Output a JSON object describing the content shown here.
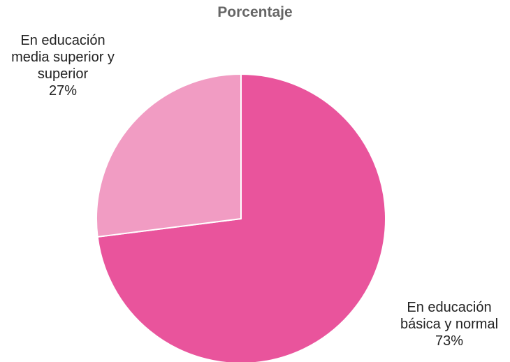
{
  "chart_data": {
    "type": "pie",
    "title": "Porcentaje",
    "categories": [
      "En educación básica y normal",
      "En educación media superior y superior"
    ],
    "values": [
      73,
      27
    ],
    "value_labels": [
      "73%",
      "27%"
    ],
    "colors": [
      "#e9549c",
      "#f19cc3"
    ]
  }
}
